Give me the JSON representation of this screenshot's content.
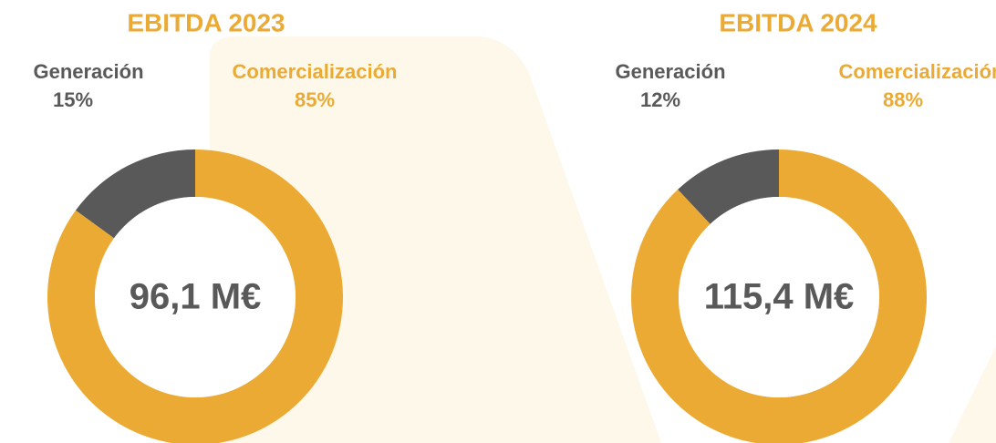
{
  "chart_data": [
    {
      "type": "pie",
      "title": "EBITDA 2023",
      "categories": [
        "Generación",
        "Comercialización"
      ],
      "values": [
        15,
        85
      ],
      "value_labels": [
        "15%",
        "85%"
      ],
      "colors": [
        "#595959",
        "#EBAA33"
      ],
      "center_label": "96,1 M€"
    },
    {
      "type": "pie",
      "title": "EBITDA 2024",
      "categories": [
        "Generación",
        "Comercialización"
      ],
      "values": [
        12,
        88
      ],
      "value_labels": [
        "12%",
        "88%"
      ],
      "colors": [
        "#595959",
        "#EBAA33"
      ],
      "center_label": "115,4 M€"
    }
  ]
}
